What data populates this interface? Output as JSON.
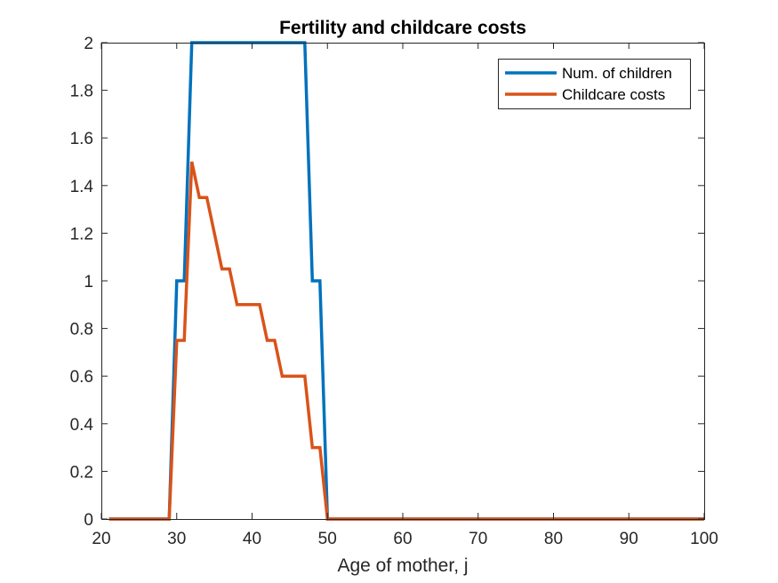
{
  "chart_data": {
    "type": "line",
    "title": "Fertility and childcare costs",
    "xlabel": "Age of mother, j",
    "ylabel": "",
    "xlim": [
      20,
      100
    ],
    "ylim": [
      0,
      2
    ],
    "xticks": [
      "20",
      "30",
      "40",
      "50",
      "60",
      "70",
      "80",
      "90",
      "100"
    ],
    "yticks": [
      "0",
      "0.2",
      "0.4",
      "0.6",
      "0.8",
      "1",
      "1.2",
      "1.4",
      "1.6",
      "1.8",
      "2"
    ],
    "grid": false,
    "legend_position": "top-right",
    "series": [
      {
        "name": "Num. of children",
        "color": "#0072BD",
        "x": [
          21,
          29,
          30,
          31,
          32,
          33,
          34,
          35,
          36,
          37,
          38,
          39,
          40,
          41,
          42,
          43,
          44,
          45,
          46,
          47,
          48,
          49,
          50,
          100
        ],
        "y": [
          0,
          0,
          1,
          1,
          2,
          2,
          2,
          2,
          2,
          2,
          2,
          2,
          2,
          2,
          2,
          2,
          2,
          2,
          2,
          2,
          1,
          1,
          0,
          0
        ]
      },
      {
        "name": "Childcare costs",
        "color": "#D95319",
        "x": [
          21,
          29,
          30,
          31,
          32,
          33,
          34,
          35,
          36,
          37,
          38,
          39,
          40,
          41,
          42,
          43,
          44,
          45,
          46,
          47,
          48,
          49,
          50,
          100
        ],
        "y": [
          0,
          0,
          0.75,
          0.75,
          1.5,
          1.35,
          1.35,
          1.2,
          1.05,
          1.05,
          0.9,
          0.9,
          0.9,
          0.9,
          0.75,
          0.75,
          0.6,
          0.6,
          0.6,
          0.6,
          0.3,
          0.3,
          0,
          0
        ]
      }
    ]
  }
}
